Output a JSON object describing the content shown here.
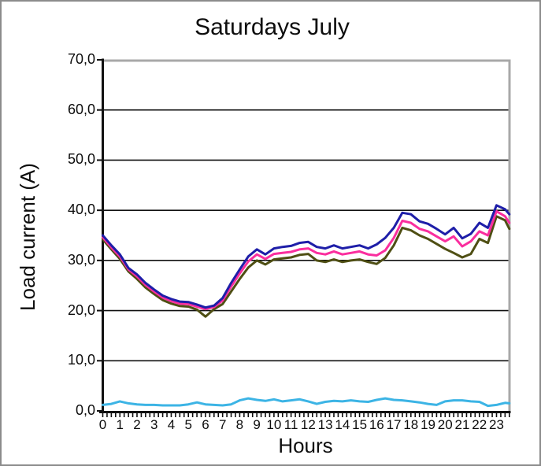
{
  "chart_data": {
    "type": "line",
    "title": "Saturdays July",
    "xlabel": "Hours",
    "ylabel": "Load current (A)",
    "x_tick_labels": [
      "0",
      "1",
      "2",
      "3",
      "4",
      "5",
      "6",
      "7",
      "8",
      "9",
      "10",
      "11",
      "12",
      "13",
      "14",
      "15",
      "16",
      "17",
      "18",
      "19",
      "20",
      "21",
      "22",
      "23"
    ],
    "y_tick_labels": [
      "70,0",
      "60,0",
      "50,0",
      "40,0",
      "30,0",
      "20,0",
      "10,0",
      "0,0"
    ],
    "y_tick_values": [
      70,
      60,
      50,
      40,
      30,
      20,
      10,
      0
    ],
    "ylim": [
      0,
      70
    ],
    "xlim": [
      0,
      23.78
    ],
    "grid": "horizontal-black-lines",
    "legend": "none",
    "minor_x_ticks_per_hour": 4,
    "x": [
      0,
      0.5,
      1,
      1.5,
      2,
      2.5,
      3,
      3.5,
      4,
      4.5,
      5,
      5.5,
      6,
      6.5,
      7,
      7.5,
      8,
      8.5,
      9,
      9.5,
      10,
      10.5,
      11,
      11.5,
      12,
      12.5,
      13,
      13.5,
      14,
      14.5,
      15,
      15.5,
      16,
      16.5,
      17,
      17.5,
      18,
      18.5,
      19,
      19.5,
      20,
      20.5,
      21,
      21.5,
      22,
      22.5,
      23,
      23.5,
      23.75
    ],
    "series": [
      {
        "name": "navy-line",
        "color": "#1E1EA8",
        "values": [
          35.0,
          33.0,
          31.2,
          28.5,
          27.2,
          25.5,
          24.2,
          23.0,
          22.3,
          21.8,
          21.7,
          21.2,
          20.6,
          21.0,
          22.5,
          25.5,
          28.2,
          30.8,
          32.2,
          31.2,
          32.4,
          32.7,
          32.9,
          33.5,
          33.7,
          32.7,
          32.4,
          33.0,
          32.4,
          32.7,
          33.0,
          32.4,
          33.2,
          34.5,
          36.5,
          39.5,
          39.2,
          37.8,
          37.3,
          36.3,
          35.2,
          36.5,
          34.4,
          35.3,
          37.5,
          36.5,
          41.0,
          40.2,
          39.2
        ]
      },
      {
        "name": "magenta-line",
        "color": "#FA2E9E",
        "values": [
          34.6,
          32.6,
          30.8,
          28.2,
          26.8,
          25.1,
          23.8,
          22.6,
          21.9,
          21.4,
          21.3,
          20.8,
          20.3,
          20.7,
          22.0,
          24.8,
          27.4,
          29.8,
          31.2,
          30.3,
          31.3,
          31.5,
          31.7,
          32.2,
          32.4,
          31.5,
          31.2,
          31.8,
          31.2,
          31.5,
          31.8,
          31.2,
          31.0,
          32.0,
          34.5,
          37.9,
          37.5,
          36.3,
          35.8,
          34.8,
          33.8,
          34.8,
          32.8,
          33.8,
          35.8,
          35.0,
          39.8,
          38.8,
          37.5
        ]
      },
      {
        "name": "olive-line",
        "color": "#4F4F14",
        "values": [
          34.2,
          32.2,
          30.3,
          27.8,
          26.3,
          24.6,
          23.3,
          22.1,
          21.4,
          20.9,
          20.8,
          20.2,
          18.8,
          20.3,
          21.3,
          23.8,
          26.3,
          28.6,
          30.0,
          29.2,
          30.2,
          30.4,
          30.6,
          31.1,
          31.3,
          30.0,
          29.7,
          30.2,
          29.7,
          30.0,
          30.2,
          29.7,
          29.3,
          30.5,
          33.0,
          36.5,
          36.0,
          35.0,
          34.3,
          33.3,
          32.3,
          31.5,
          30.6,
          31.3,
          34.3,
          33.5,
          38.8,
          38.0,
          36.3
        ]
      },
      {
        "name": "cyan-line",
        "color": "#3CB4E5",
        "values": [
          1.2,
          1.4,
          1.9,
          1.5,
          1.3,
          1.2,
          1.2,
          1.1,
          1.1,
          1.1,
          1.3,
          1.7,
          1.3,
          1.2,
          1.1,
          1.3,
          2.1,
          2.5,
          2.2,
          2.0,
          2.3,
          1.9,
          2.1,
          2.3,
          1.9,
          1.4,
          1.8,
          2.0,
          1.9,
          2.1,
          1.9,
          1.8,
          2.2,
          2.5,
          2.2,
          2.1,
          1.9,
          1.7,
          1.4,
          1.2,
          1.9,
          2.1,
          2.1,
          1.9,
          1.8,
          1.0,
          1.2,
          1.6,
          1.5
        ]
      }
    ]
  },
  "colors": {
    "grid_line": "#111111",
    "axis_line": "#111111",
    "plot_border": "#A8A8A8",
    "outer_border": "#8C8C8C",
    "background": "#FFFFFF"
  }
}
